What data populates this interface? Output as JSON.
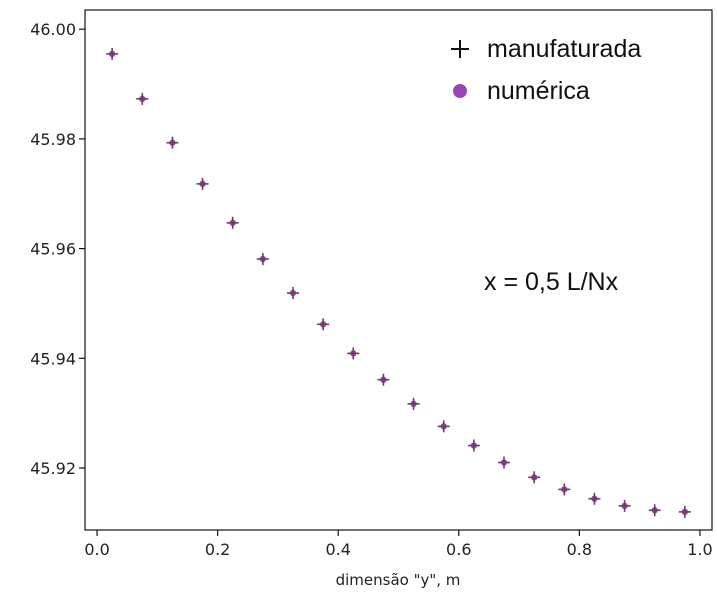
{
  "chart_data": {
    "type": "scatter",
    "title": "",
    "xlabel": "dimensão \"y\", m",
    "ylabel": "",
    "xlim": [
      -0.02,
      1.02
    ],
    "ylim": [
      45.9087,
      46.0035
    ],
    "x_ticks": [
      0.0,
      0.2,
      0.4,
      0.6,
      0.8,
      1.0
    ],
    "x_tick_labels": [
      "0.0",
      "0.2",
      "0.4",
      "0.6",
      "0.8",
      "1.0"
    ],
    "y_ticks": [
      45.92,
      45.94,
      45.96,
      45.98,
      46.0
    ],
    "y_tick_labels": [
      "45.92",
      "45.94",
      "45.96",
      "45.98",
      "46.00"
    ],
    "grid": false,
    "legend_position": "top-right",
    "annotation": "x = 0,5 L/Nx",
    "x": [
      0.025,
      0.075,
      0.125,
      0.175,
      0.225,
      0.275,
      0.325,
      0.375,
      0.425,
      0.475,
      0.525,
      0.575,
      0.625,
      0.675,
      0.725,
      0.775,
      0.825,
      0.875,
      0.925,
      0.975
    ],
    "series": [
      {
        "name": "manufaturada",
        "marker": "plus",
        "color": "#111111",
        "values": [
          45.9955,
          45.9873,
          45.9793,
          45.9718,
          45.9647,
          45.9581,
          45.9519,
          45.9462,
          45.9409,
          45.9361,
          45.9317,
          45.9276,
          45.9241,
          45.921,
          45.9183,
          45.9161,
          45.9144,
          45.9131,
          45.9123,
          45.912
        ]
      },
      {
        "name": "numérica",
        "marker": "circle",
        "color": "#9b44b5",
        "values": [
          45.9955,
          45.9873,
          45.9793,
          45.9718,
          45.9647,
          45.9581,
          45.9519,
          45.9462,
          45.9409,
          45.9361,
          45.9317,
          45.9276,
          45.9241,
          45.921,
          45.9183,
          45.9161,
          45.9144,
          45.9131,
          45.9123,
          45.912
        ]
      }
    ]
  }
}
